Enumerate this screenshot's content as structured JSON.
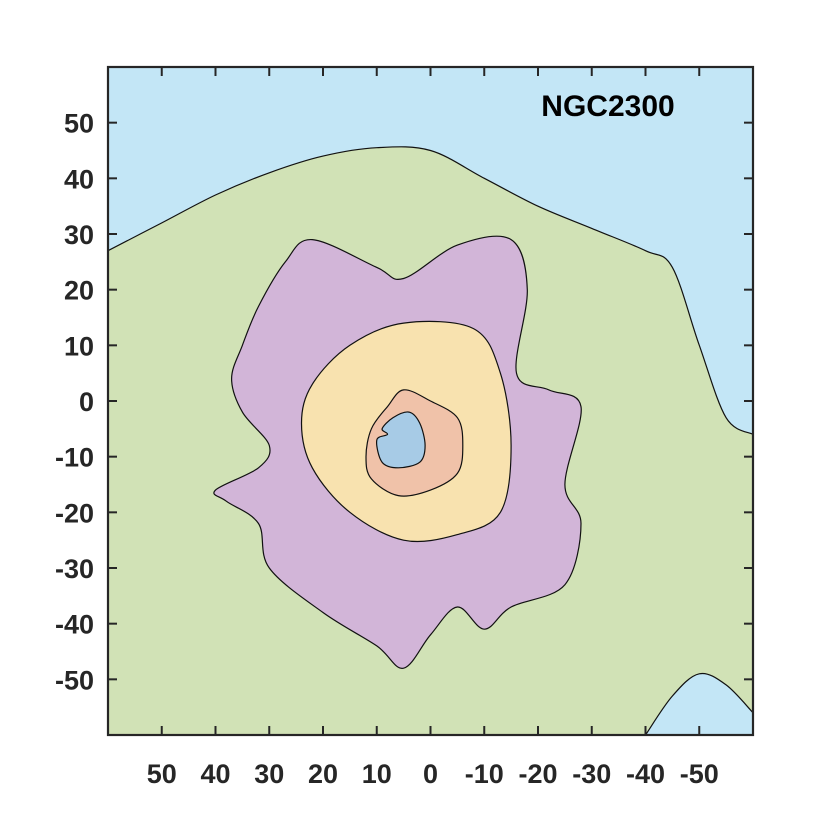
{
  "chart_data": {
    "type": "contour",
    "title": "NGC2300",
    "xlabel": "",
    "ylabel": "",
    "xlim": [
      60,
      -60
    ],
    "ylim": [
      -60,
      60
    ],
    "x_reversed": true,
    "grid": false,
    "x_ticks": [
      50,
      40,
      30,
      20,
      10,
      0,
      -10,
      -20,
      -30,
      -40,
      -50
    ],
    "y_ticks": [
      50,
      40,
      30,
      20,
      10,
      0,
      -10,
      -20,
      -30,
      -40,
      -50
    ],
    "x_tick_labels": [
      "50",
      "40",
      "30",
      "20",
      "10",
      "0",
      "-10",
      "-20",
      "-30",
      "-40",
      "-50"
    ],
    "y_tick_labels": [
      "50",
      "40",
      "30",
      "20",
      "10",
      "0",
      "-10",
      "-20",
      "-30",
      "-40",
      "-50"
    ],
    "background_color": "#c3e6f6",
    "levels": [
      {
        "level": 1,
        "color": "#d1e2b6",
        "boundary": [
          [
            60,
            27
          ],
          [
            50,
            32
          ],
          [
            40,
            37
          ],
          [
            30,
            41
          ],
          [
            20,
            44
          ],
          [
            10,
            45.5
          ],
          [
            0,
            45
          ],
          [
            -10,
            40
          ],
          [
            -20,
            35
          ],
          [
            -30,
            31
          ],
          [
            -40,
            27
          ],
          [
            -45,
            24
          ],
          [
            -50,
            10
          ],
          [
            -55,
            -3
          ],
          [
            -60,
            -6
          ],
          [
            -60,
            -60
          ],
          [
            60,
            -60
          ]
        ]
      },
      {
        "level": 2,
        "color": "#d2b5d8",
        "boundary": [
          [
            22,
            29
          ],
          [
            10,
            24
          ],
          [
            5,
            22
          ],
          [
            -5,
            28
          ],
          [
            -15,
            29
          ],
          [
            -18,
            20
          ],
          [
            -16,
            5
          ],
          [
            -22,
            2
          ],
          [
            -28,
            -1
          ],
          [
            -25,
            -15
          ],
          [
            -28,
            -22
          ],
          [
            -25,
            -33
          ],
          [
            -15,
            -37
          ],
          [
            -10,
            -41
          ],
          [
            -5,
            -37
          ],
          [
            0,
            -42
          ],
          [
            5,
            -48
          ],
          [
            10,
            -44
          ],
          [
            20,
            -38
          ],
          [
            30,
            -30
          ],
          [
            32,
            -22
          ],
          [
            38,
            -18
          ],
          [
            40,
            -16
          ],
          [
            32,
            -12
          ],
          [
            30,
            -8
          ],
          [
            35,
            -2
          ],
          [
            37,
            4
          ],
          [
            35,
            10
          ],
          [
            32,
            17
          ],
          [
            27,
            25
          ]
        ]
      },
      {
        "level": 3,
        "color": "#f8e2af",
        "boundary": [
          [
            -8,
            13
          ],
          [
            -13,
            5
          ],
          [
            -15,
            -8
          ],
          [
            -13,
            -20
          ],
          [
            -5,
            -24
          ],
          [
            5,
            -25
          ],
          [
            15,
            -20
          ],
          [
            22,
            -12
          ],
          [
            24,
            -4
          ],
          [
            22,
            3
          ],
          [
            15,
            10
          ],
          [
            5,
            14
          ]
        ]
      },
      {
        "level": 4,
        "color": "#f0c2a9",
        "boundary": [
          [
            5,
            2
          ],
          [
            0,
            0
          ],
          [
            -5,
            -3
          ],
          [
            -6,
            -8
          ],
          [
            -5,
            -13
          ],
          [
            0,
            -16
          ],
          [
            6,
            -17
          ],
          [
            11,
            -14
          ],
          [
            12,
            -10
          ],
          [
            11,
            -5
          ],
          [
            8,
            -1
          ]
        ]
      },
      {
        "level": 5,
        "color": "#a7cbe6",
        "boundary": [
          [
            4,
            -2
          ],
          [
            2,
            -4
          ],
          [
            1,
            -8
          ],
          [
            2,
            -11
          ],
          [
            6,
            -12
          ],
          [
            9,
            -11
          ],
          [
            10,
            -7
          ],
          [
            8,
            -6
          ],
          [
            9,
            -5
          ],
          [
            7,
            -3
          ]
        ]
      },
      {
        "level": 0,
        "color": "#c3e6f6",
        "boundary": [
          [
            -40,
            -60
          ],
          [
            -45,
            -53
          ],
          [
            -50,
            -49
          ],
          [
            -55,
            -51
          ],
          [
            -60,
            -56
          ],
          [
            -60,
            -60
          ]
        ]
      }
    ]
  }
}
